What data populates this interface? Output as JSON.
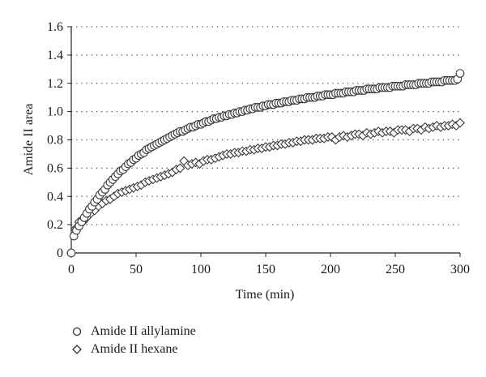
{
  "chart_data": {
    "type": "scatter",
    "title": "",
    "xlabel": "Time (min)",
    "ylabel": "Amide II area",
    "xlim": [
      0,
      300
    ],
    "ylim": [
      0,
      1.6
    ],
    "xticks": [
      "0",
      "50",
      "100",
      "150",
      "200",
      "250",
      "300"
    ],
    "yticks": [
      "0",
      "0.2",
      "0.4",
      "0.6",
      "0.8",
      "1.0",
      "1.2",
      "1.4",
      "1.6"
    ],
    "grid": "horizontal dotted",
    "legend_position": "bottom-left",
    "series": [
      {
        "name": "Amide II allylamine",
        "marker": "circle",
        "x": [
          0,
          2,
          4,
          6,
          8,
          10,
          12,
          14,
          16,
          18,
          20,
          22,
          24,
          26,
          28,
          30,
          32,
          34,
          36,
          38,
          40,
          42,
          44,
          46,
          48,
          50,
          52,
          54,
          56,
          58,
          60,
          62,
          64,
          66,
          68,
          70,
          72,
          74,
          76,
          78,
          80,
          82,
          84,
          86,
          88,
          90,
          92,
          94,
          96,
          98,
          100,
          102,
          104,
          106,
          108,
          110,
          112,
          114,
          116,
          118,
          120,
          122,
          124,
          126,
          128,
          130,
          132,
          134,
          136,
          138,
          140,
          142,
          144,
          146,
          148,
          150,
          152,
          154,
          156,
          158,
          160,
          162,
          164,
          166,
          168,
          170,
          172,
          174,
          176,
          178,
          180,
          182,
          184,
          186,
          188,
          190,
          192,
          194,
          196,
          198,
          200,
          202,
          204,
          206,
          208,
          210,
          212,
          214,
          216,
          218,
          220,
          222,
          224,
          226,
          228,
          230,
          232,
          234,
          236,
          238,
          240,
          242,
          244,
          246,
          248,
          250,
          252,
          254,
          256,
          258,
          260,
          262,
          264,
          266,
          268,
          270,
          272,
          274,
          276,
          278,
          280,
          282,
          284,
          286,
          288,
          290,
          292,
          294,
          296,
          298,
          300
        ],
        "y": [
          0.0,
          0.12,
          0.16,
          0.19,
          0.22,
          0.25,
          0.28,
          0.31,
          0.33,
          0.36,
          0.38,
          0.41,
          0.43,
          0.45,
          0.48,
          0.5,
          0.52,
          0.54,
          0.56,
          0.58,
          0.59,
          0.61,
          0.63,
          0.64,
          0.66,
          0.67,
          0.69,
          0.7,
          0.71,
          0.73,
          0.74,
          0.75,
          0.76,
          0.77,
          0.78,
          0.79,
          0.8,
          0.81,
          0.82,
          0.83,
          0.84,
          0.85,
          0.86,
          0.86,
          0.87,
          0.88,
          0.89,
          0.89,
          0.9,
          0.91,
          0.91,
          0.92,
          0.93,
          0.93,
          0.94,
          0.95,
          0.95,
          0.96,
          0.96,
          0.97,
          0.97,
          0.98,
          0.98,
          0.99,
          0.99,
          1.0,
          1.0,
          1.01,
          1.01,
          1.02,
          1.02,
          1.03,
          1.03,
          1.03,
          1.04,
          1.04,
          1.05,
          1.05,
          1.05,
          1.06,
          1.06,
          1.06,
          1.07,
          1.07,
          1.07,
          1.08,
          1.08,
          1.08,
          1.09,
          1.09,
          1.09,
          1.1,
          1.1,
          1.1,
          1.1,
          1.11,
          1.11,
          1.11,
          1.12,
          1.12,
          1.12,
          1.12,
          1.13,
          1.13,
          1.13,
          1.13,
          1.14,
          1.14,
          1.14,
          1.14,
          1.15,
          1.15,
          1.15,
          1.15,
          1.16,
          1.16,
          1.16,
          1.16,
          1.16,
          1.17,
          1.17,
          1.17,
          1.17,
          1.17,
          1.18,
          1.18,
          1.18,
          1.18,
          1.18,
          1.19,
          1.19,
          1.19,
          1.19,
          1.19,
          1.2,
          1.2,
          1.2,
          1.2,
          1.2,
          1.21,
          1.21,
          1.21,
          1.21,
          1.21,
          1.22,
          1.22,
          1.22,
          1.22,
          1.22,
          1.23,
          1.27
        ]
      },
      {
        "name": "Amide II hexane",
        "marker": "diamond",
        "x": [
          0,
          3,
          6,
          9,
          12,
          15,
          18,
          21,
          24,
          27,
          30,
          33,
          36,
          39,
          42,
          45,
          48,
          51,
          54,
          57,
          60,
          63,
          66,
          69,
          72,
          75,
          78,
          81,
          84,
          87,
          90,
          93,
          96,
          99,
          102,
          105,
          108,
          111,
          114,
          117,
          120,
          123,
          126,
          129,
          132,
          135,
          138,
          141,
          144,
          147,
          150,
          153,
          156,
          159,
          162,
          165,
          168,
          171,
          174,
          177,
          180,
          183,
          186,
          189,
          192,
          195,
          198,
          201,
          204,
          207,
          210,
          213,
          216,
          219,
          222,
          225,
          228,
          231,
          234,
          237,
          240,
          243,
          246,
          249,
          252,
          255,
          258,
          261,
          264,
          267,
          270,
          273,
          276,
          279,
          282,
          285,
          288,
          291,
          294,
          297,
          300
        ],
        "y": [
          0.0,
          0.17,
          0.22,
          0.22,
          0.25,
          0.28,
          0.3,
          0.33,
          0.35,
          0.37,
          0.38,
          0.4,
          0.42,
          0.43,
          0.44,
          0.45,
          0.46,
          0.47,
          0.48,
          0.5,
          0.51,
          0.52,
          0.53,
          0.54,
          0.55,
          0.56,
          0.57,
          0.59,
          0.6,
          0.65,
          0.62,
          0.63,
          0.64,
          0.63,
          0.65,
          0.66,
          0.66,
          0.67,
          0.68,
          0.69,
          0.7,
          0.7,
          0.71,
          0.71,
          0.72,
          0.72,
          0.73,
          0.73,
          0.74,
          0.74,
          0.75,
          0.75,
          0.76,
          0.76,
          0.77,
          0.77,
          0.78,
          0.78,
          0.79,
          0.79,
          0.8,
          0.8,
          0.8,
          0.81,
          0.81,
          0.81,
          0.82,
          0.82,
          0.8,
          0.82,
          0.83,
          0.82,
          0.83,
          0.84,
          0.84,
          0.83,
          0.85,
          0.84,
          0.85,
          0.86,
          0.85,
          0.86,
          0.86,
          0.85,
          0.87,
          0.87,
          0.87,
          0.86,
          0.88,
          0.88,
          0.87,
          0.89,
          0.88,
          0.89,
          0.9,
          0.89,
          0.9,
          0.9,
          0.91,
          0.9,
          0.92
        ]
      }
    ]
  }
}
